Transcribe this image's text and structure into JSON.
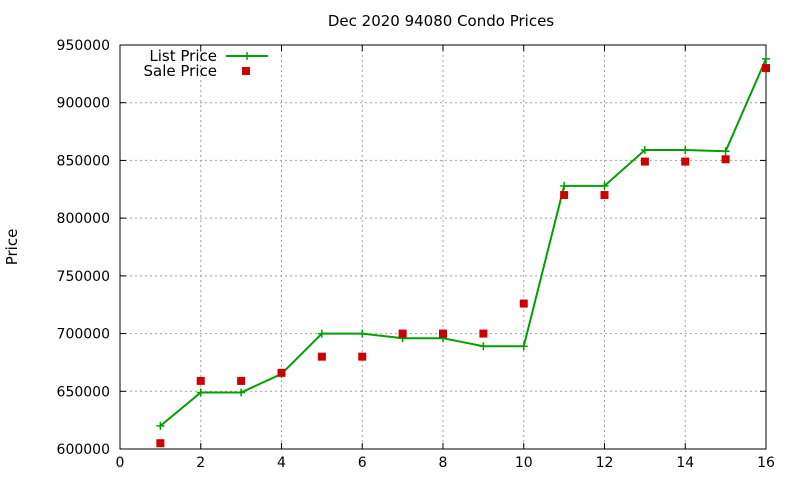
{
  "chart_data": {
    "type": "line",
    "title": "Dec 2020 94080 Condo Prices",
    "xlabel": "",
    "ylabel": "Price",
    "xlim": [
      0,
      16
    ],
    "ylim": [
      600000,
      950000
    ],
    "xticks": [
      0,
      2,
      4,
      6,
      8,
      10,
      12,
      14,
      16
    ],
    "yticks": [
      600000,
      650000,
      700000,
      750000,
      800000,
      850000,
      900000,
      950000
    ],
    "grid": true,
    "legend": "top-left",
    "series": [
      {
        "name": "List Price",
        "style": "line+cross",
        "color": "#00a000",
        "x": [
          1,
          2,
          3,
          4,
          5,
          6,
          7,
          8,
          9,
          10,
          11,
          12,
          13,
          14,
          15,
          16
        ],
        "values": [
          620000,
          649000,
          649000,
          665000,
          700000,
          700000,
          696000,
          696000,
          689000,
          689000,
          828000,
          828000,
          859000,
          859000,
          858000,
          938000
        ]
      },
      {
        "name": "Sale Price",
        "style": "square",
        "color": "#cc0000",
        "x": [
          1,
          2,
          3,
          4,
          5,
          6,
          7,
          8,
          9,
          10,
          11,
          12,
          13,
          14,
          15,
          16
        ],
        "values": [
          605000,
          659000,
          659000,
          666000,
          680000,
          680000,
          700000,
          700000,
          700000,
          726000,
          820000,
          820000,
          849000,
          849000,
          851000,
          930000
        ]
      }
    ]
  }
}
